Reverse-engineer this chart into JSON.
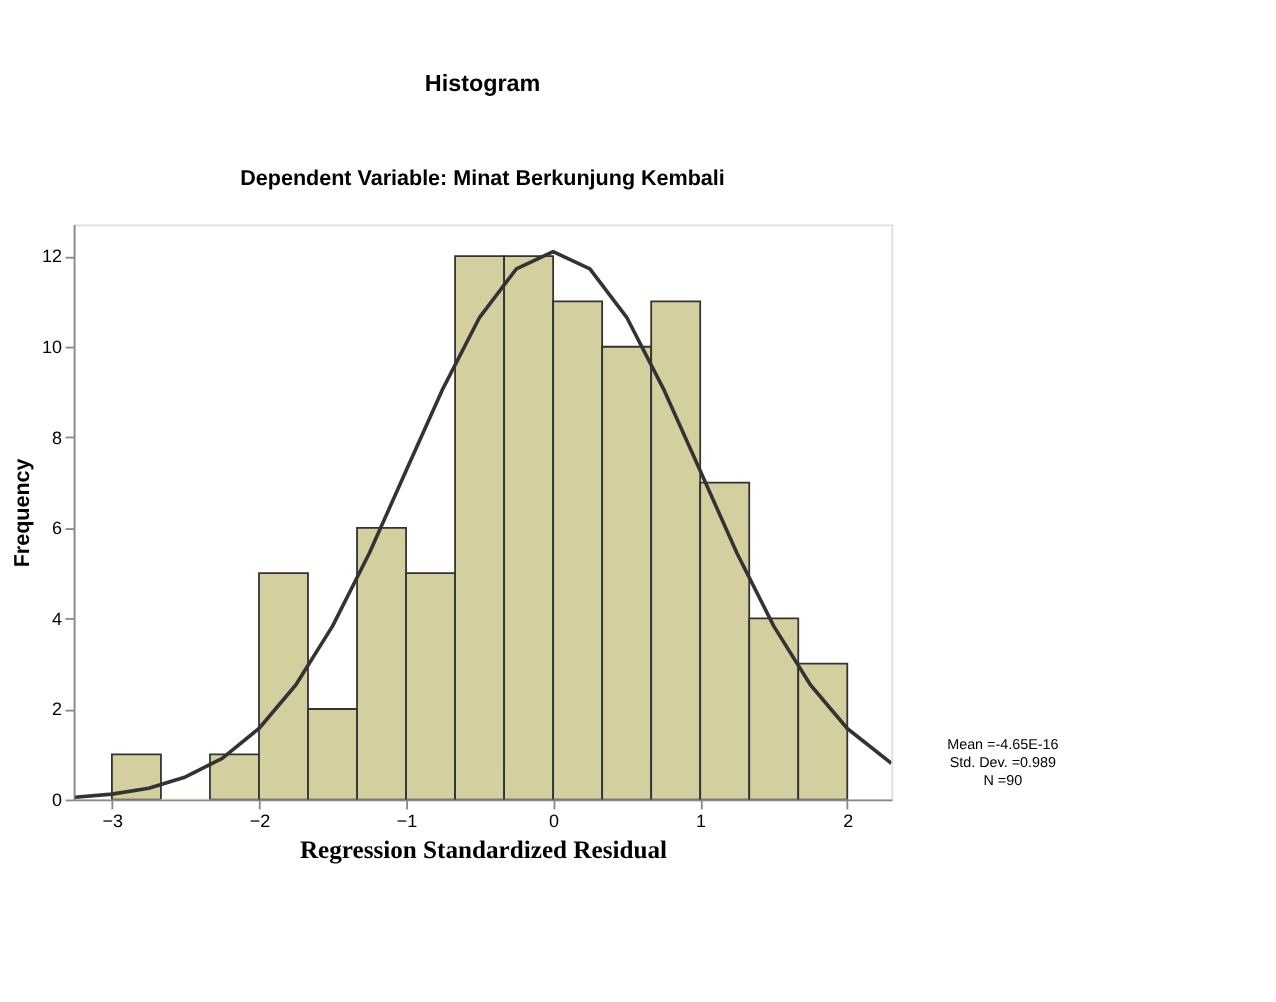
{
  "chart_data": {
    "type": "histogram",
    "title": "Histogram",
    "subtitle": "Dependent Variable: Minat Berkunjung Kembali",
    "xlabel": "Regression Standardized Residual",
    "ylabel": "Frequency",
    "bins": [
      -3,
      -2.6667,
      -2.3333,
      -2,
      -1.6667,
      -1.3333,
      -1,
      -0.6667,
      -0.3333,
      0,
      0.3333,
      0.6667,
      1,
      1.3333,
      1.6667,
      2
    ],
    "values": [
      1,
      0,
      1,
      5,
      2,
      6,
      5,
      12,
      12,
      11,
      10,
      11,
      7,
      4,
      3
    ],
    "color": "#d4cf9e",
    "series": [
      {
        "type": "line",
        "color": "#333333",
        "x": [
          -3.25,
          -3,
          -2.75,
          -2.5,
          -2.25,
          -2,
          -1.75,
          -1.5,
          -1.25,
          -1,
          -0.75,
          -0.5,
          -0.25,
          0,
          0.25,
          0.5,
          0.75,
          1,
          1.25,
          1.5,
          1.75,
          2,
          2.3
        ],
        "values": [
          0.05,
          0.12,
          0.25,
          0.5,
          0.91,
          1.57,
          2.53,
          3.83,
          5.44,
          7.26,
          9.07,
          10.65,
          11.72,
          12.1,
          11.72,
          10.65,
          9.07,
          7.26,
          5.44,
          3.83,
          2.53,
          1.57,
          0.8
        ]
      }
    ],
    "xlim": [
      -3.26,
      2.3
    ],
    "xticks": [
      -3,
      -2,
      -1,
      0,
      1,
      2
    ],
    "ylim": [
      0,
      12.7
    ],
    "yticks": [
      0,
      2,
      4,
      6,
      8,
      10,
      12
    ],
    "grid": false,
    "annotations": [
      "Mean =-4.65E-16",
      "Std. Dev. =0.989",
      "N =90"
    ]
  }
}
